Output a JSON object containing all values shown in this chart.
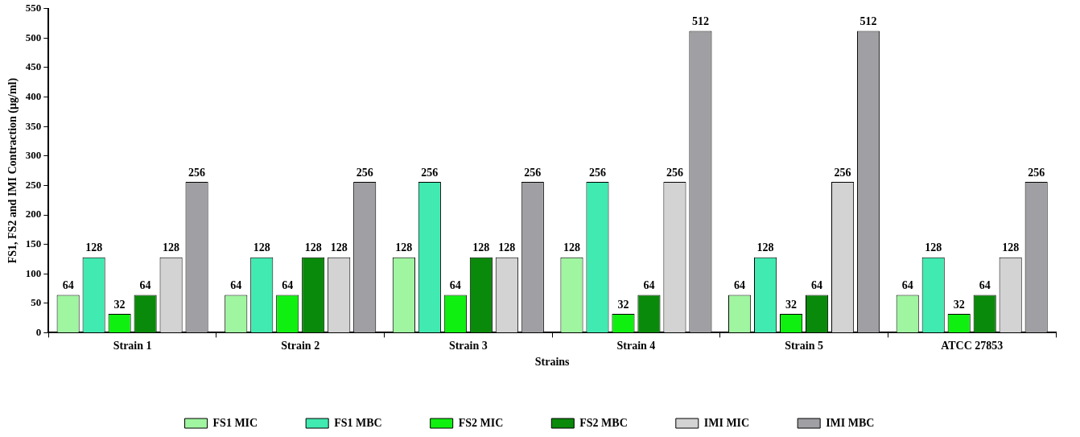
{
  "chart_data": {
    "type": "bar",
    "xlabel": "Strains",
    "ylabel": "FS1, FS2 and IMI Contraction (µg/ml)",
    "categories": [
      "Strain 1",
      "Strain 2",
      "Strain 3",
      "Strain 4",
      "Strain 5",
      "ATCC 27853"
    ],
    "series": [
      {
        "name": "FS1 MIC",
        "color": "#a0f5a0",
        "values": [
          64,
          64,
          128,
          128,
          64,
          64
        ]
      },
      {
        "name": "FS1 MBC",
        "color": "#40eab0",
        "values": [
          128,
          128,
          256,
          256,
          128,
          128
        ]
      },
      {
        "name": "FS2 MIC",
        "color": "#10f010",
        "values": [
          32,
          64,
          64,
          32,
          32,
          32
        ]
      },
      {
        "name": "FS2 MBC",
        "color": "#0a8a0a",
        "values": [
          64,
          128,
          128,
          64,
          64,
          64
        ]
      },
      {
        "name": "IMI MIC",
        "color": "#d3d3d3",
        "values": [
          128,
          128,
          128,
          256,
          256,
          128
        ]
      },
      {
        "name": "IMI MBC",
        "color": "#a0a0a4",
        "values": [
          256,
          256,
          256,
          512,
          512,
          256
        ]
      }
    ],
    "ylim": [
      0,
      550
    ],
    "yticks": [
      0,
      50,
      100,
      150,
      200,
      250,
      300,
      350,
      400,
      450,
      500,
      550
    ],
    "grid": false,
    "legend": "bottom",
    "data_labels": true
  }
}
